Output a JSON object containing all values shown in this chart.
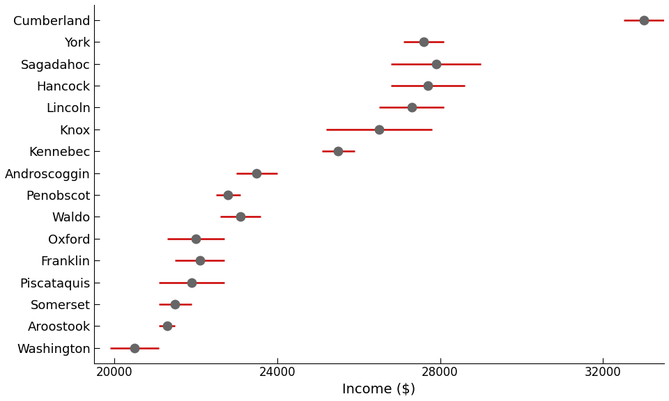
{
  "counties": [
    "Cumberland",
    "York",
    "Sagadahoc",
    "Hancock",
    "Lincoln",
    "Knox",
    "Kennebec",
    "Androscoggin",
    "Penobscot",
    "Waldo",
    "Oxford",
    "Franklin",
    "Piscataquis",
    "Somerset",
    "Aroostook",
    "Washington"
  ],
  "estimates": [
    33000,
    27600,
    27900,
    27700,
    27300,
    26500,
    25500,
    23500,
    22800,
    23100,
    22000,
    22100,
    21900,
    21500,
    21300,
    20500
  ],
  "lower": [
    32500,
    27100,
    26800,
    26800,
    26500,
    25200,
    25100,
    23000,
    22500,
    22600,
    21300,
    21500,
    21100,
    21100,
    21100,
    19900
  ],
  "upper": [
    33500,
    28100,
    29000,
    28600,
    28100,
    27800,
    25900,
    24000,
    23100,
    23600,
    22700,
    22700,
    22700,
    21900,
    21500,
    21100
  ],
  "point_color": "#666666",
  "error_color": "#cc0000",
  "xlim": [
    19500,
    33500
  ],
  "xticks": [
    20000,
    24000,
    28000,
    32000
  ],
  "xlabel": "Income ($)",
  "figsize": [
    9.6,
    5.76
  ],
  "dpi": 100
}
